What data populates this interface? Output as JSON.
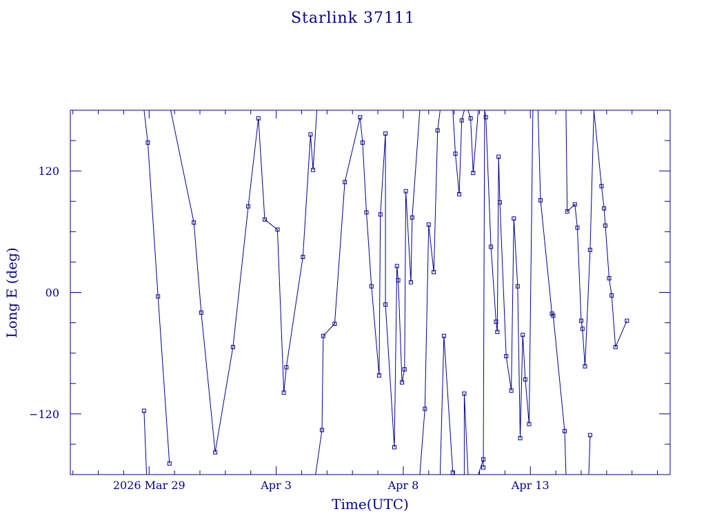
{
  "chart_data": {
    "type": "line",
    "title": "Starlink 37111",
    "xlabel": "Time(UTC)",
    "ylabel": "Long E (deg)",
    "x_unit": "days (fractional, day 29 = 2026 Mar 29 00:00 UTC)",
    "xlim": [
      25.9,
      49.5
    ],
    "ylim": [
      -180,
      180
    ],
    "x_ticks": [
      {
        "x": 29,
        "label": "2026 Mar 29"
      },
      {
        "x": 34,
        "label": "Apr  3"
      },
      {
        "x": 39,
        "label": "Apr  8"
      },
      {
        "x": 44,
        "label": "Apr 13"
      }
    ],
    "y_ticks": [
      {
        "y": -120,
        "label": "−120"
      },
      {
        "y": 0,
        "label": "00"
      },
      {
        "y": 120,
        "label": "120"
      }
    ],
    "grid": false,
    "series": [
      {
        "color": "#00008b",
        "marker": "square",
        "points": [
          [
            28.8,
            -117
          ],
          [
            28.9,
            -180
          ],
          null,
          [
            28.8,
            180
          ],
          [
            28.95,
            148
          ],
          [
            29.35,
            -4
          ],
          [
            29.8,
            -169
          ],
          null,
          [
            29.85,
            180
          ],
          [
            30.76,
            69
          ],
          [
            31.05,
            -20
          ],
          [
            31.6,
            -158
          ],
          [
            32.3,
            -54
          ],
          [
            32.9,
            85
          ],
          [
            33.3,
            172
          ],
          [
            33.55,
            72
          ],
          [
            34.05,
            62
          ],
          [
            34.3,
            -99
          ],
          [
            34.4,
            -74
          ],
          [
            35.05,
            35
          ],
          [
            35.35,
            156
          ],
          [
            35.45,
            121
          ],
          [
            35.6,
            180
          ],
          null,
          [
            35.55,
            -180
          ],
          [
            35.8,
            -136
          ],
          [
            35.85,
            -43
          ],
          [
            36.3,
            -31
          ],
          [
            36.7,
            109
          ],
          [
            37.3,
            173
          ],
          [
            37.4,
            148
          ],
          [
            37.55,
            79
          ],
          [
            37.75,
            6
          ],
          [
            38.05,
            -82
          ],
          [
            38.1,
            77
          ],
          [
            38.3,
            157
          ],
          [
            38.3,
            -12
          ],
          [
            38.65,
            -153
          ],
          [
            38.75,
            26
          ],
          [
            38.8,
            12
          ],
          [
            38.95,
            -89
          ],
          [
            39.05,
            -76
          ],
          [
            39.1,
            100
          ],
          [
            39.3,
            10
          ],
          [
            39.35,
            74
          ],
          [
            39.65,
            180
          ],
          null,
          [
            39.65,
            -180
          ],
          [
            39.85,
            -115
          ],
          [
            40.0,
            67
          ],
          [
            40.2,
            20
          ],
          [
            40.35,
            160
          ],
          [
            40.45,
            180
          ],
          null,
          [
            40.45,
            -180
          ],
          [
            40.6,
            -43
          ],
          [
            40.95,
            -178
          ],
          null,
          [
            40.95,
            180
          ],
          [
            41.05,
            137
          ],
          [
            41.2,
            97
          ],
          [
            41.3,
            170
          ],
          [
            41.4,
            180
          ],
          null,
          [
            41.4,
            -180
          ],
          [
            41.4,
            -100
          ],
          [
            41.55,
            -180
          ],
          null,
          [
            41.55,
            180
          ],
          [
            41.65,
            172
          ],
          [
            41.75,
            118
          ],
          [
            41.95,
            180
          ],
          null,
          [
            41.95,
            -180
          ],
          [
            42.15,
            -165
          ],
          [
            42.15,
            -173
          ],
          [
            42.2,
            180
          ],
          null,
          [
            42.2,
            180
          ],
          [
            42.25,
            173
          ],
          [
            42.45,
            45
          ],
          [
            42.65,
            -29
          ],
          [
            42.7,
            -39
          ],
          [
            42.75,
            134
          ],
          [
            42.8,
            89
          ],
          [
            43.05,
            -63
          ],
          [
            43.25,
            -97
          ],
          [
            43.35,
            73
          ],
          [
            43.5,
            6
          ],
          [
            43.6,
            -144
          ],
          [
            43.7,
            -42
          ],
          [
            43.8,
            -86
          ],
          [
            43.95,
            -130
          ],
          [
            44.1,
            180
          ],
          null,
          [
            44.3,
            180
          ],
          [
            44.4,
            91
          ],
          [
            44.85,
            -21
          ],
          [
            44.9,
            -23
          ],
          [
            45.35,
            -137
          ],
          [
            45.4,
            -180
          ],
          null,
          [
            45.4,
            180
          ],
          [
            45.45,
            80
          ],
          [
            45.75,
            87
          ],
          [
            45.85,
            64
          ],
          [
            46.0,
            -28
          ],
          [
            46.05,
            -36
          ],
          [
            46.15,
            -73
          ],
          [
            46.35,
            42
          ],
          [
            46.5,
            180
          ],
          null,
          [
            46.3,
            -180
          ],
          [
            46.35,
            -141
          ],
          null,
          [
            46.5,
            180
          ],
          [
            46.8,
            105
          ],
          [
            46.9,
            83
          ],
          [
            46.95,
            66
          ],
          [
            47.1,
            14
          ],
          [
            47.2,
            -3
          ],
          [
            47.35,
            -54
          ],
          [
            47.8,
            -28
          ]
        ]
      }
    ]
  }
}
